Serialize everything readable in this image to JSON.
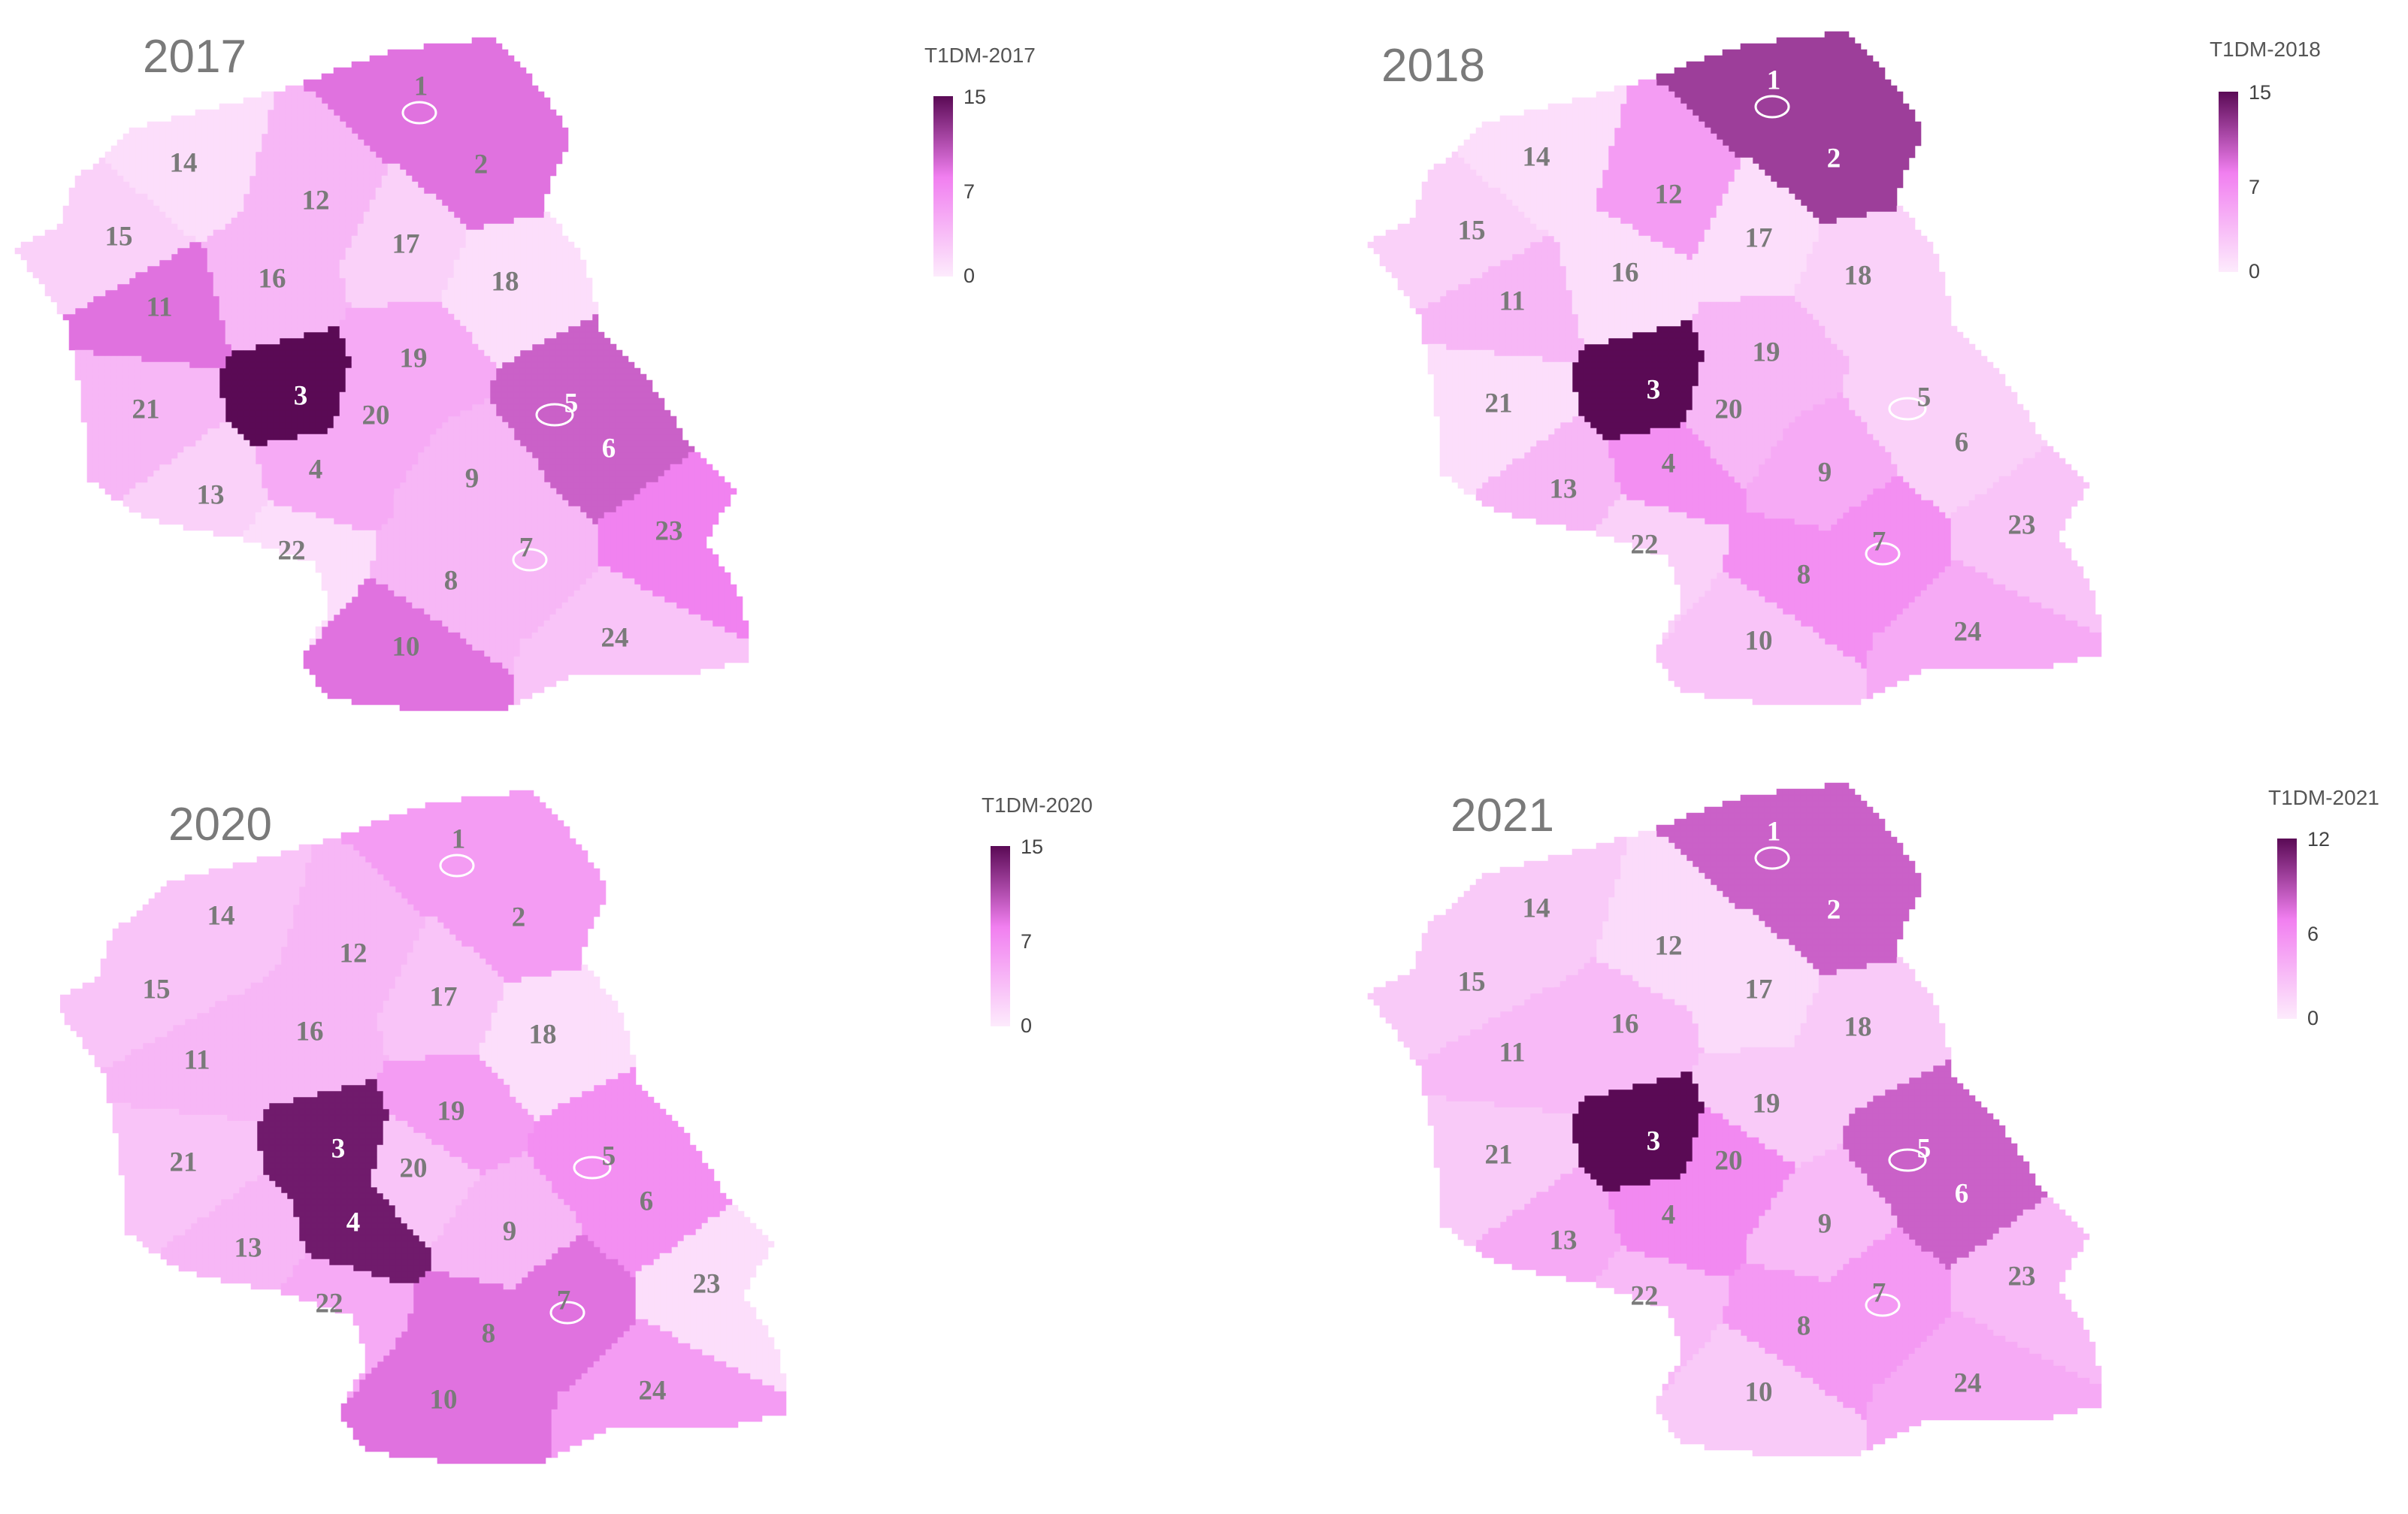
{
  "color_scale": {
    "low": "#fdebfc",
    "mid": "#f17ff0",
    "high": "#5a0a55"
  },
  "panels": [
    {
      "year": "2017",
      "legend": {
        "title": "T1DM-2017",
        "max": 15,
        "mid": 7,
        "min": 0
      },
      "values": {
        "1": 9,
        "2": 9,
        "3": 15,
        "4": 5,
        "5": 10,
        "6": 10,
        "7": 4,
        "8": 4,
        "9": 4,
        "10": 9,
        "11": 9,
        "12": 4,
        "13": 2,
        "14": 1,
        "15": 2,
        "16": 4,
        "17": 2,
        "18": 1,
        "19": 5,
        "20": 5,
        "21": 4,
        "22": 1,
        "23": 8,
        "24": 3
      }
    },
    {
      "year": "2018",
      "legend": {
        "title": "T1DM-2018",
        "max": 15,
        "mid": 7,
        "min": 0
      },
      "values": {
        "1": 12,
        "2": 12,
        "3": 15,
        "4": 7,
        "5": 2,
        "6": 2,
        "7": 7,
        "8": 7,
        "9": 5,
        "10": 3,
        "11": 4,
        "12": 6,
        "13": 4,
        "14": 1,
        "15": 2,
        "16": 1,
        "17": 1,
        "18": 2,
        "19": 4,
        "20": 4,
        "21": 1,
        "22": 2,
        "23": 3,
        "24": 5
      }
    },
    {
      "year": "2020",
      "legend": {
        "title": "T1DM-2020",
        "max": 15,
        "mid": 7,
        "min": 0
      },
      "values": {
        "1": 6,
        "2": 6,
        "3": 14,
        "4": 14,
        "5": 7,
        "6": 7,
        "7": 9,
        "8": 9,
        "9": 4,
        "10": 9,
        "11": 4,
        "12": 4,
        "13": 4,
        "14": 3,
        "15": 3,
        "16": 4,
        "17": 3,
        "18": 1,
        "19": 6,
        "20": 3,
        "21": 3,
        "22": 5,
        "23": 1,
        "24": 6
      }
    },
    {
      "year": "2021",
      "legend": {
        "title": "T1DM-2021",
        "max": 12,
        "mid": 6,
        "min": 0
      },
      "values": {
        "1": 8,
        "2": 8,
        "3": 12,
        "4": 6,
        "5": 8,
        "6": 8,
        "7": 5,
        "8": 5,
        "9": 3,
        "10": 2,
        "11": 3,
        "12": 1,
        "13": 4,
        "14": 2,
        "15": 2,
        "16": 3,
        "17": 1,
        "18": 2,
        "19": 2,
        "20": 6,
        "21": 2,
        "22": 3,
        "23": 3,
        "24": 4
      }
    }
  ]
}
